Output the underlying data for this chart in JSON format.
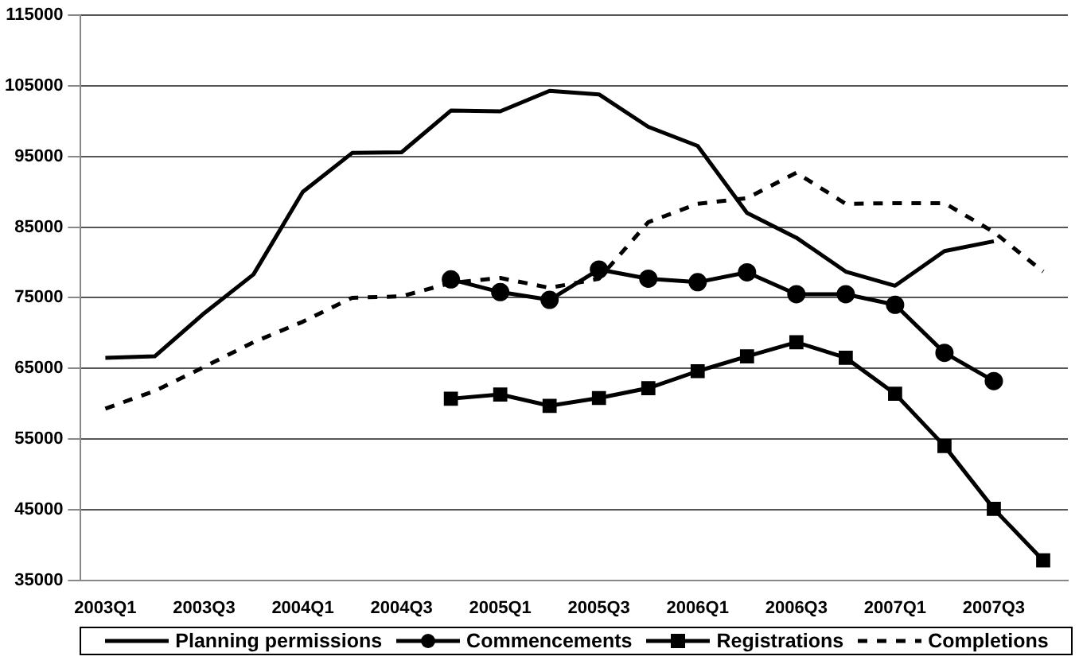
{
  "chart_data": {
    "type": "line",
    "categories": [
      "2003Q1",
      null,
      "2003Q3",
      null,
      "2004Q1",
      null,
      "2004Q3",
      null,
      "2005Q1",
      null,
      "2005Q3",
      null,
      "2006Q1",
      null,
      "2006Q3",
      null,
      "2007Q1",
      null,
      "2007Q3",
      null
    ],
    "series": [
      {
        "name": "Planning permissions",
        "color": "#000000",
        "marker": "none",
        "line_style": "solid",
        "values": [
          66500,
          66700,
          72800,
          78300,
          90000,
          95500,
          95600,
          101500,
          101400,
          104300,
          103800,
          99200,
          96500,
          87000,
          83500,
          78700,
          76700,
          81600,
          83000,
          null
        ]
      },
      {
        "name": "Commencements",
        "color": "#000000",
        "marker": "circle",
        "line_style": "solid",
        "values": [
          null,
          null,
          null,
          null,
          null,
          null,
          null,
          77600,
          75800,
          74700,
          79000,
          77700,
          77200,
          78600,
          75500,
          75500,
          74000,
          67200,
          63200,
          null
        ]
      },
      {
        "name": "Registrations",
        "color": "#000000",
        "marker": "square",
        "line_style": "solid",
        "values": [
          null,
          null,
          null,
          null,
          null,
          null,
          null,
          60700,
          61300,
          59700,
          60800,
          62200,
          64600,
          66700,
          68700,
          66500,
          61400,
          54000,
          45100,
          37800
        ]
      },
      {
        "name": "Completions",
        "color": "#000000",
        "marker": "none",
        "line_style": "dashed",
        "values": [
          59300,
          61800,
          65200,
          68700,
          71600,
          75000,
          75200,
          77100,
          77800,
          76400,
          77700,
          85700,
          88300,
          89100,
          92700,
          88300,
          88400,
          88400,
          84300,
          78700
        ]
      }
    ],
    "ylim": [
      35000,
      115000
    ],
    "yticks": [
      35000,
      45000,
      55000,
      65000,
      75000,
      85000,
      95000,
      105000,
      115000
    ],
    "grid": "y",
    "legend": "bottom"
  }
}
